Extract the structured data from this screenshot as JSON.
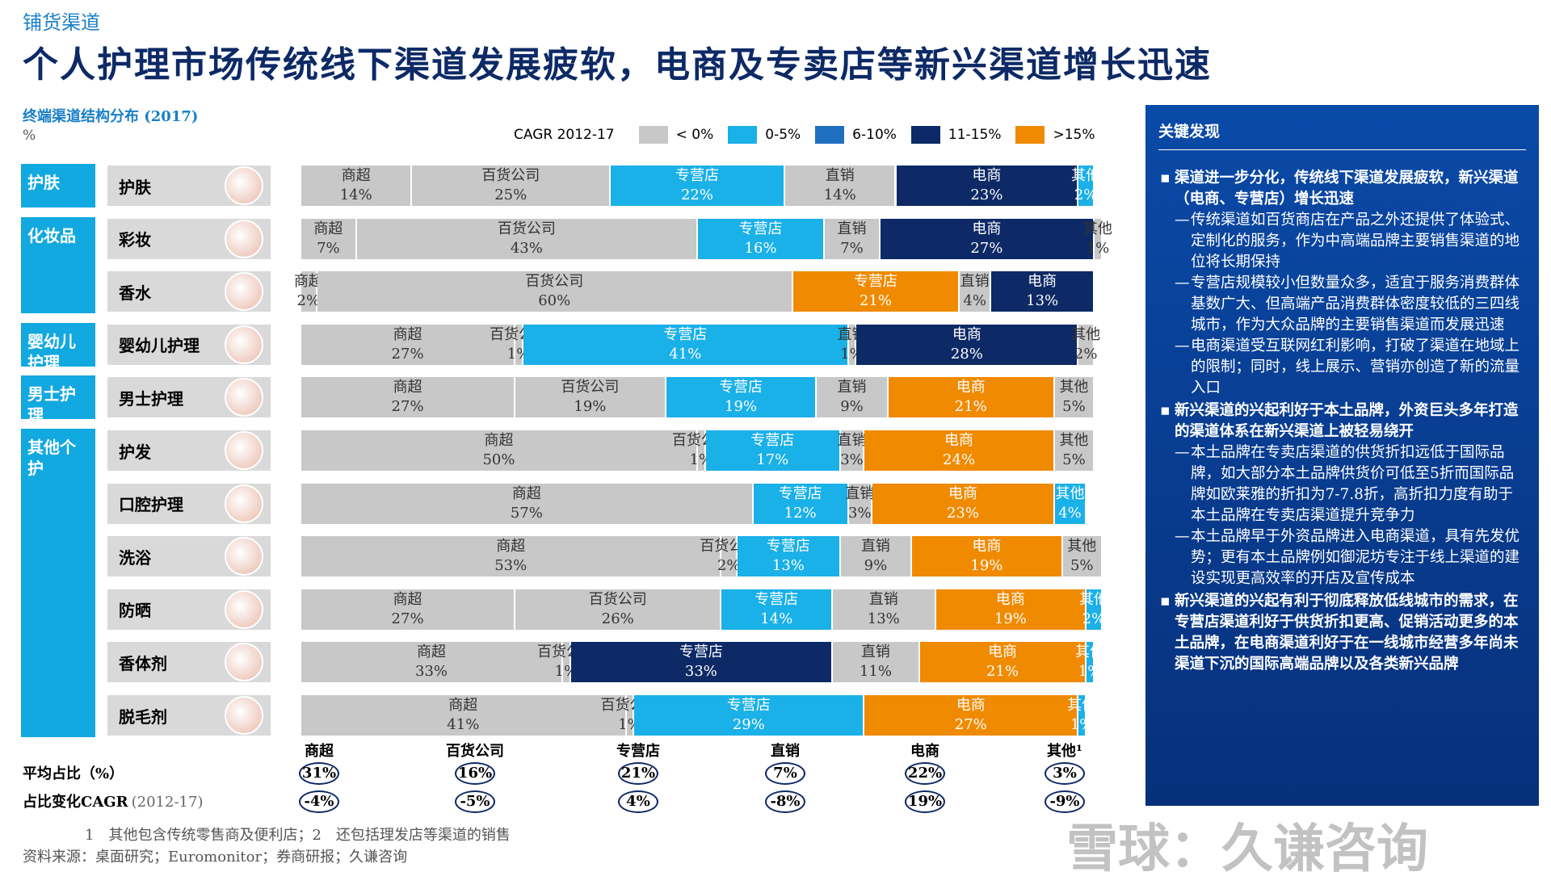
{
  "header": {
    "section": "铺货渠道",
    "title": "个人护理市场传统线下渠道发展疲软，电商及专卖店等新兴渠道增长迅速"
  },
  "chart_data": {
    "type": "bar",
    "orientation": "horizontal",
    "stacked": true,
    "title": "终端渠道结构分布 (2017)",
    "unit": "%",
    "legend_title": "CAGR 2012-17",
    "legend": [
      {
        "label": "< 0%",
        "color": "#c8c8c8"
      },
      {
        "label": "0-5%",
        "color": "#1ab0e8"
      },
      {
        "label": "6-10%",
        "color": "#1f6fc0"
      },
      {
        "label": "11-15%",
        "color": "#0d2a66"
      },
      {
        "label": ">15%",
        "color": "#f08a00"
      }
    ],
    "groups": [
      "护肤",
      "化妆品",
      "婴幼儿护理",
      "男士护理",
      "其他个护"
    ],
    "categories": [
      "护肤",
      "彩妆",
      "香水",
      "婴幼儿护理",
      "男士护理",
      "护发",
      "口腔护理",
      "洗浴",
      "防晒",
      "香体剂",
      "脱毛剂"
    ],
    "series": [
      {
        "name": "商超",
        "values": [
          14,
          7,
          2,
          27,
          27,
          50,
          57,
          53,
          27,
          33,
          41
        ],
        "value_labels": [
          "14%",
          "7%",
          "2%",
          "27%",
          "27%",
          "50%",
          "57%",
          "53%",
          "27%",
          "33%",
          "41%"
        ],
        "colors": [
          "#c8c8c8",
          "#c8c8c8",
          "#c8c8c8",
          "#c8c8c8",
          "#c8c8c8",
          "#c8c8c8",
          "#c8c8c8",
          "#c8c8c8",
          "#c8c8c8",
          "#c8c8c8",
          "#c8c8c8"
        ]
      },
      {
        "name": "百货公司",
        "values": [
          25,
          43,
          60,
          1,
          19,
          1,
          null,
          2,
          26,
          1,
          1
        ],
        "value_labels": [
          "25%",
          "43%",
          "60%",
          "1%",
          "19%",
          "1%",
          null,
          "2%",
          "26%",
          "1%",
          "1%"
        ],
        "colors": [
          "#c8c8c8",
          "#c8c8c8",
          "#c8c8c8",
          "#c8c8c8",
          "#c8c8c8",
          "#c8c8c8",
          "#c8c8c8",
          "#c8c8c8",
          "#c8c8c8",
          "#c8c8c8",
          "#c8c8c8"
        ]
      },
      {
        "name": "专营店",
        "values": [
          22,
          16,
          21,
          41,
          19,
          17,
          12,
          13,
          14,
          33,
          29
        ],
        "value_labels": [
          "22%",
          "16%",
          "21%",
          "41%",
          "19%",
          "17%",
          "12%",
          "13%",
          "14%",
          "33%",
          "29%"
        ],
        "colors": [
          "#1ab0e8",
          "#1ab0e8",
          "#f08a00",
          "#1ab0e8",
          "#1ab0e8",
          "#1ab0e8",
          "#1ab0e8",
          "#1ab0e8",
          "#1ab0e8",
          "#0d2a66",
          "#1ab0e8"
        ]
      },
      {
        "name": "直销",
        "values": [
          14,
          7,
          4,
          1,
          9,
          3,
          3,
          9,
          13,
          11,
          null
        ],
        "value_labels": [
          "14%",
          "7%",
          "4%",
          "1%",
          "9%",
          "3%",
          "3%",
          "9%",
          "13%",
          "11%",
          null
        ],
        "colors": [
          "#c8c8c8",
          "#c8c8c8",
          "#c8c8c8",
          "#c8c8c8",
          "#c8c8c8",
          "#c8c8c8",
          "#c8c8c8",
          "#c8c8c8",
          "#c8c8c8",
          "#c8c8c8",
          "#c8c8c8"
        ]
      },
      {
        "name": "电商",
        "values": [
          23,
          27,
          13,
          28,
          21,
          24,
          23,
          19,
          19,
          21,
          27
        ],
        "value_labels": [
          "23%",
          "27%",
          "13%",
          "28%",
          "21%",
          "24%",
          "23%",
          "19%",
          "19%",
          "21%",
          "27%"
        ],
        "colors": [
          "#0d2a66",
          "#0d2a66",
          "#0d2a66",
          "#0d2a66",
          "#f08a00",
          "#f08a00",
          "#f08a00",
          "#f08a00",
          "#f08a00",
          "#f08a00",
          "#f08a00"
        ]
      },
      {
        "name": "其他",
        "values": [
          2,
          1,
          null,
          2,
          5,
          5,
          4,
          5,
          2,
          1,
          1
        ],
        "value_labels": [
          "2%",
          "1%",
          null,
          "2%",
          "5%",
          "5%",
          "4%",
          "5%",
          "2%",
          "1%",
          "1%"
        ],
        "colors": [
          "#1ab0e8",
          "#c8c8c8",
          "#c8c8c8",
          "#c8c8c8",
          "#c8c8c8",
          "#c8c8c8",
          "#1ab0e8",
          "#c8c8c8",
          "#1ab0e8",
          "#1ab0e8",
          "#1ab0e8"
        ]
      }
    ],
    "xlim": [
      0,
      100
    ]
  },
  "summary": {
    "columns": [
      "商超",
      "百货公司",
      "专营店",
      "直销",
      "电商",
      "其他¹"
    ],
    "rows": [
      {
        "label": "平均占比（%）",
        "values": [
          31,
          16,
          21,
          7,
          22,
          3
        ],
        "value_labels": [
          "31%",
          "16%",
          "21%",
          "7%",
          "22%",
          "3%"
        ]
      },
      {
        "label": "占比变化CAGR",
        "note": "(2012-17)",
        "values": [
          -4,
          -5,
          4,
          -8,
          19,
          -9
        ],
        "value_labels": [
          "-4%",
          "-5%",
          "4%",
          "-8%",
          "19%",
          "-9%"
        ]
      }
    ]
  },
  "key_findings": {
    "title": "关键发现",
    "items": [
      {
        "text": "渠道进一步分化，传统线下渠道发展疲软，新兴渠道（电商、专营店）增长迅速",
        "sub": [
          "传统渠道如百货商店在产品之外还提供了体验式、定制化的服务，作为中高端品牌主要销售渠道的地位将长期保持",
          "专营店规模较小但数量众多，适宜于服务消费群体基数广大、但高端产品消费群体密度较低的三四线城市，作为大众品牌的主要销售渠道而发展迅速",
          "电商渠道受互联网红利影响，打破了渠道在地域上的限制；同时，线上展示、营销亦创造了新的流量入口"
        ]
      },
      {
        "text": "新兴渠道的兴起利好于本土品牌，外资巨头多年打造的渠道体系在新兴渠道上被轻易绕开",
        "sub": [
          "本土品牌在专卖店渠道的供货折扣远低于国际品牌，如大部分本土品牌供货价可低至5折而国际品牌如欧莱雅的折扣为7-7.8折，高折扣力度有助于本土品牌在专卖店渠道提升竞争力",
          "本土品牌早于外资品牌进入电商渠道，具有先发优势；更有本土品牌例如御泥坊专注于线上渠道的建设实现更高效率的开店及宣传成本"
        ]
      },
      {
        "text": "新兴渠道的兴起有利于彻底释放低线城市的需求，在专营店渠道利好于供货折扣更高、促销活动更多的本土品牌，在电商渠道利好于在一线城市经营多年尚未渠道下沉的国际高端品牌以及各类新兴品牌",
        "sub": []
      }
    ]
  },
  "footnotes": [
    "1　其他包含传统零售商及便利店；2　还包括理发店等渠道的销售",
    "资料来源：桌面研究；Euromonitor；券商研报；久谦咨询"
  ],
  "watermark": "雪球：久谦咨询"
}
